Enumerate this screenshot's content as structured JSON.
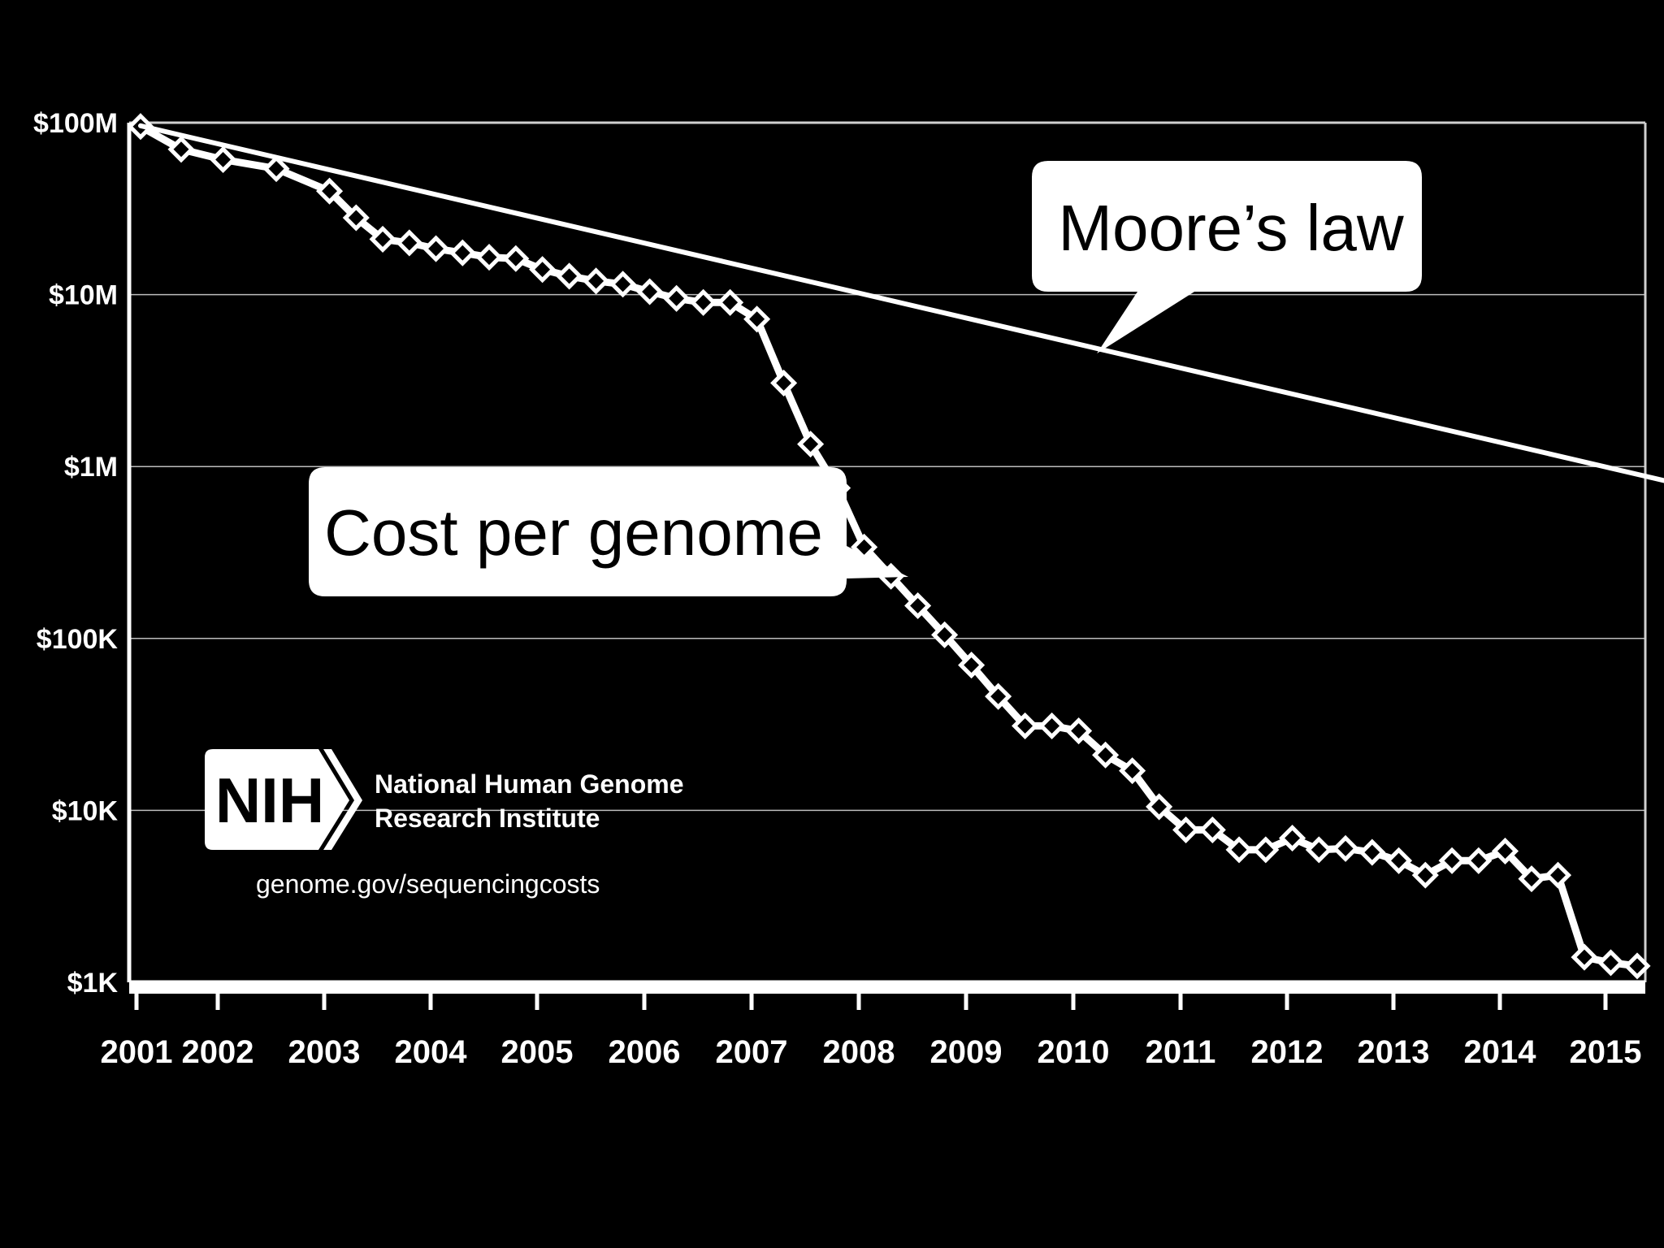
{
  "chart_data": {
    "type": "line",
    "title": "",
    "xlabel": "",
    "ylabel": "",
    "y_scale": "log",
    "ylim": [
      1000,
      100000000
    ],
    "xlim": [
      2001,
      2015.9
    ],
    "grid": true,
    "colors": {
      "background": "#000000",
      "foreground": "#ffffff"
    },
    "y_ticks": [
      {
        "value": 100000000,
        "label": "$100M"
      },
      {
        "value": 10000000,
        "label": "$10M"
      },
      {
        "value": 1000000,
        "label": "$1M"
      },
      {
        "value": 100000,
        "label": "$100K"
      },
      {
        "value": 10000,
        "label": "$10K"
      },
      {
        "value": 1000,
        "label": "$1K"
      }
    ],
    "x_ticks": [
      {
        "value": 2001,
        "label": "2001"
      },
      {
        "value": 2002,
        "label": "2002"
      },
      {
        "value": 2003,
        "label": "2003"
      },
      {
        "value": 2004,
        "label": "2004"
      },
      {
        "value": 2005,
        "label": "2005"
      },
      {
        "value": 2006,
        "label": "2006"
      },
      {
        "value": 2007,
        "label": "2007"
      },
      {
        "value": 2008,
        "label": "2008"
      },
      {
        "value": 2009,
        "label": "2009"
      },
      {
        "value": 2010,
        "label": "2010"
      },
      {
        "value": 2011,
        "label": "2011"
      },
      {
        "value": 2012,
        "label": "2012"
      },
      {
        "value": 2013,
        "label": "2013"
      },
      {
        "value": 2014,
        "label": "2014"
      },
      {
        "value": 2015,
        "label": "2015"
      }
    ],
    "series": [
      {
        "name": "Cost per genome",
        "marker": "diamond",
        "x": [
          2001.05,
          2001.55,
          2002.05,
          2002.55,
          2003.05,
          2003.3,
          2003.55,
          2003.8,
          2004.05,
          2004.3,
          2004.55,
          2004.8,
          2005.05,
          2005.3,
          2005.55,
          2005.8,
          2006.05,
          2006.3,
          2006.55,
          2006.8,
          2007.05,
          2007.3,
          2007.55,
          2007.8,
          2008.05,
          2008.3,
          2008.55,
          2008.8,
          2009.05,
          2009.3,
          2009.55,
          2009.8,
          2010.05,
          2010.3,
          2010.55,
          2010.8,
          2011.05,
          2011.3,
          2011.55,
          2011.8,
          2012.05,
          2012.3,
          2012.55,
          2012.8,
          2013.05,
          2013.3,
          2013.55,
          2013.8,
          2014.05,
          2014.3,
          2014.55,
          2014.8,
          2015.05,
          2015.3
        ],
        "values": [
          95000000,
          70000000,
          61000000,
          54000000,
          40000000,
          28000000,
          21000000,
          20000000,
          18500000,
          17500000,
          16500000,
          16200000,
          14000000,
          12800000,
          12000000,
          11500000,
          10400000,
          9500000,
          9000000,
          9000000,
          7200000,
          3060000,
          1350000,
          750000,
          340000,
          230000,
          155000,
          105000,
          70000,
          46000,
          31000,
          31000,
          29000,
          21000,
          17000,
          10500,
          7700,
          7700,
          5900,
          5900,
          6900,
          5900,
          6000,
          5700,
          5100,
          4200,
          5100,
          5100,
          5800,
          4000,
          4200,
          1400,
          1300,
          1245
        ]
      },
      {
        "name": "Moore’s law",
        "marker": "none",
        "x": [
          2001.05,
          2015.9
        ],
        "values": [
          96000000,
          740000
        ]
      }
    ],
    "annotations": [
      {
        "text": "Moore’s law",
        "target_series": "Moore’s law"
      },
      {
        "text": "Cost per genome",
        "target_series": "Cost per genome"
      }
    ]
  },
  "logo": {
    "letters": "NIH",
    "name_line1": "National Human Genome",
    "name_line2": "Research Institute",
    "url": "genome.gov/sequencingcosts"
  }
}
